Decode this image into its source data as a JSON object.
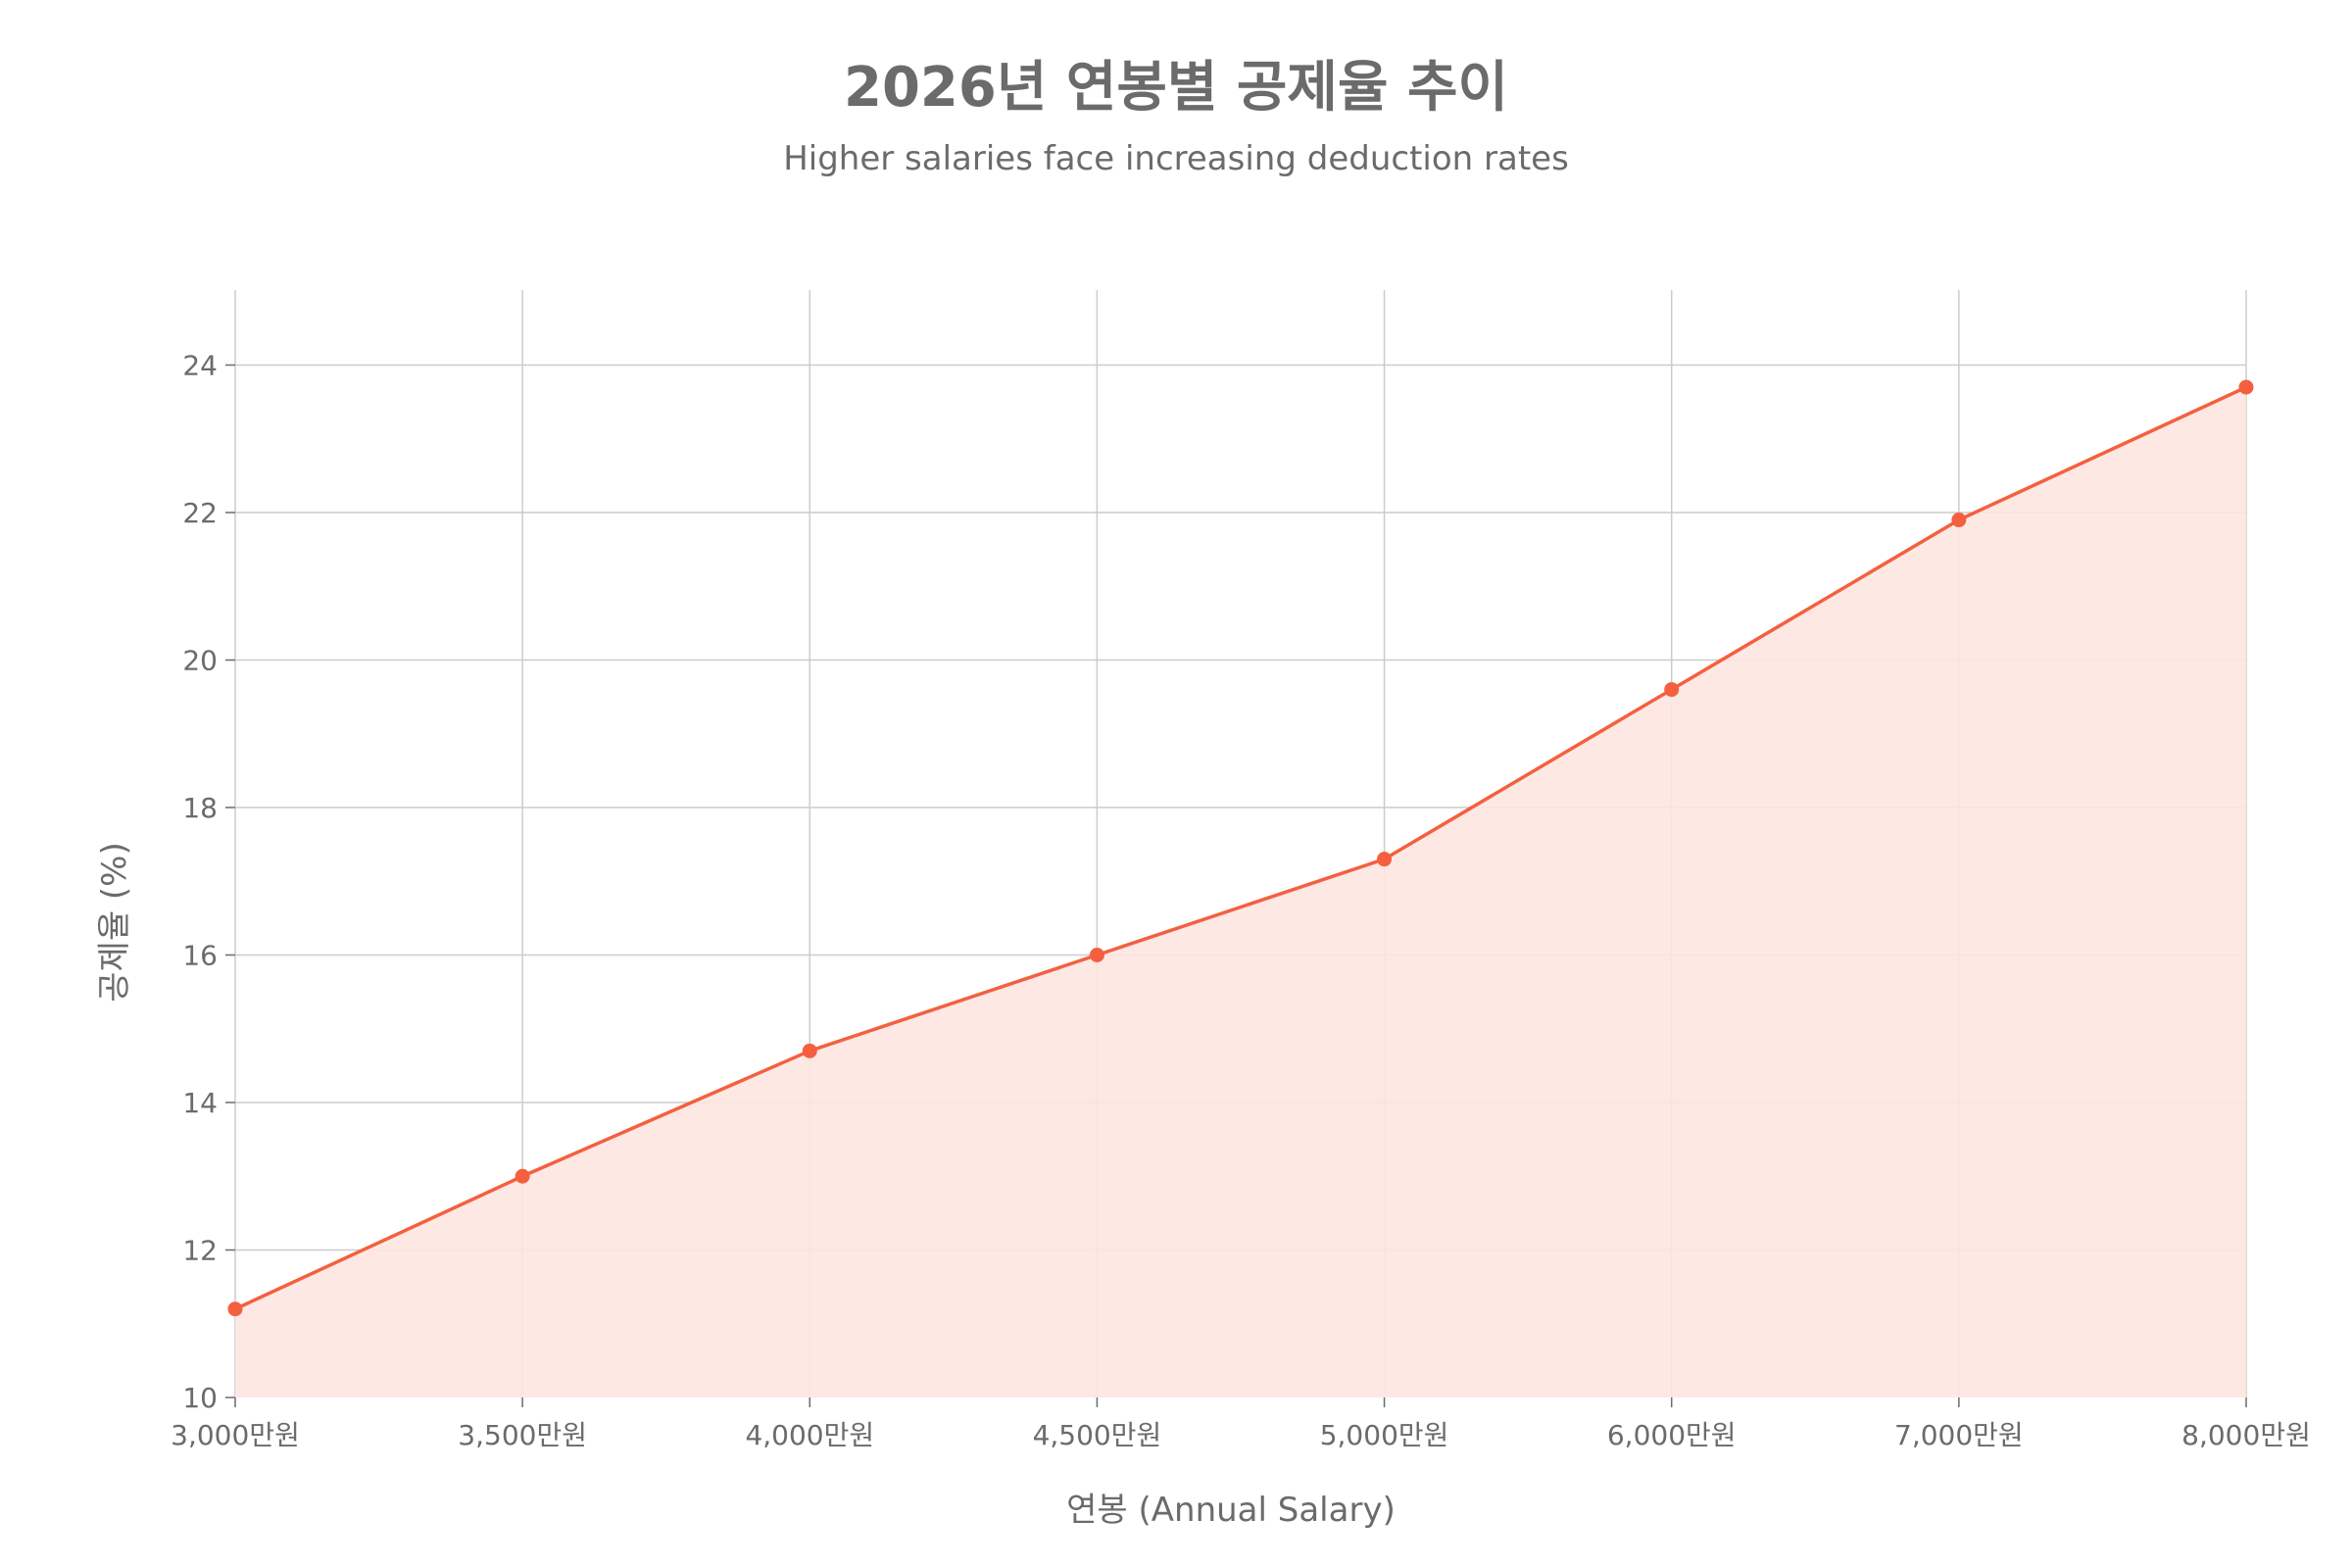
{
  "header": {
    "title": "2026년 연봉별 공제율 추이",
    "subtitle": "Higher salaries face increasing deduction rates"
  },
  "colors": {
    "line": "#f4603f",
    "fill": "#fde6e1",
    "grid": "#cccccc",
    "text": "#6b6b6b"
  },
  "chart_data": {
    "type": "area",
    "title": "2026년 연봉별 공제율 추이",
    "subtitle": "Higher salaries face increasing deduction rates",
    "xlabel": "연봉 (Annual Salary)",
    "ylabel": "공제율 (%)",
    "categories": [
      "3,000만원",
      "3,500만원",
      "4,000만원",
      "4,500만원",
      "5,000만원",
      "6,000만원",
      "7,000만원",
      "8,000만원"
    ],
    "series": [
      {
        "values": [
          11.2,
          13.0,
          14.7,
          16.0,
          17.3,
          19.6,
          21.9,
          23.7
        ]
      }
    ],
    "ylim": [
      10,
      25
    ],
    "yticks": [
      10,
      12,
      14,
      16,
      18,
      20,
      22,
      24
    ],
    "grid": true,
    "legend": "none"
  }
}
